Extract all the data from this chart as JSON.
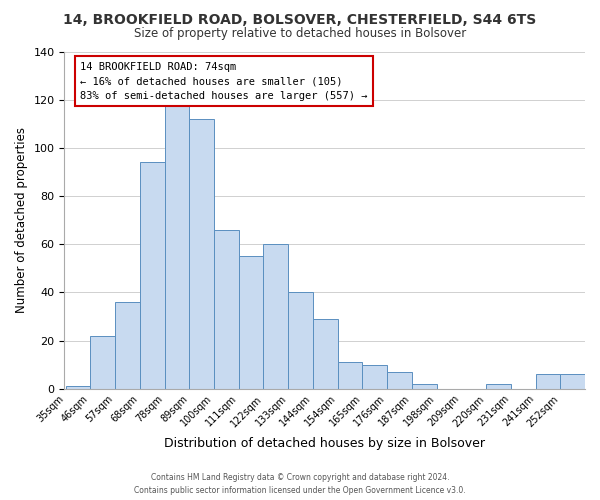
{
  "title": "14, BROOKFIELD ROAD, BOLSOVER, CHESTERFIELD, S44 6TS",
  "subtitle": "Size of property relative to detached houses in Bolsover",
  "xlabel": "Distribution of detached houses by size in Bolsover",
  "ylabel": "Number of detached properties",
  "bar_color": "#c8daf0",
  "bar_edge_color": "#5a8fc0",
  "categories": [
    "35sqm",
    "46sqm",
    "57sqm",
    "68sqm",
    "78sqm",
    "89sqm",
    "100sqm",
    "111sqm",
    "122sqm",
    "133sqm",
    "144sqm",
    "154sqm",
    "165sqm",
    "176sqm",
    "187sqm",
    "198sqm",
    "209sqm",
    "220sqm",
    "231sqm",
    "241sqm",
    "252sqm"
  ],
  "values": [
    1,
    22,
    36,
    94,
    118,
    112,
    66,
    55,
    60,
    40,
    29,
    11,
    10,
    7,
    2,
    0,
    0,
    2,
    0,
    6,
    6
  ],
  "ylim": [
    0,
    140
  ],
  "yticks": [
    0,
    20,
    40,
    60,
    80,
    100,
    120,
    140
  ],
  "annotation_title": "14 BROOKFIELD ROAD: 74sqm",
  "annotation_line1": "← 16% of detached houses are smaller (105)",
  "annotation_line2": "83% of semi-detached houses are larger (557) →",
  "annotation_box_color": "#ffffff",
  "annotation_box_edge_color": "#cc0000",
  "footer_line1": "Contains HM Land Registry data © Crown copyright and database right 2024.",
  "footer_line2": "Contains public sector information licensed under the Open Government Licence v3.0.",
  "background_color": "#ffffff",
  "grid_color": "#d0d0d0"
}
